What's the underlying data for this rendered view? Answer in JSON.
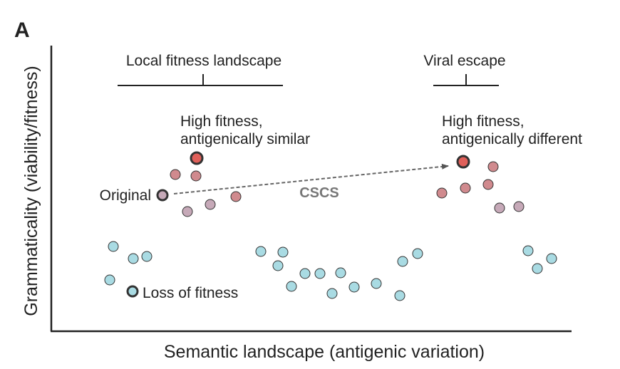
{
  "panel_label": "A",
  "axes": {
    "x_label": "Semantic landscape (antigenic variation)",
    "y_label": "Grammaticality (viability/fitness)"
  },
  "brackets": {
    "local": "Local fitness landscape",
    "viral": "Viral escape"
  },
  "annotations": {
    "high_similar_line1": "High fitness,",
    "high_similar_line2": "antigenically similar",
    "high_different_line1": "High fitness,",
    "high_different_line2": "antigenically different",
    "original": "Original",
    "loss": "Loss of fitness",
    "arrow": "CSCS"
  },
  "colors": {
    "high_fitness": "#e0605a",
    "medium_fitness": "#d08a8e",
    "mauve": "#c6a9b8",
    "low_fitness": "#a9dbe3",
    "outline": "#333333",
    "arrow": "#666666"
  }
}
